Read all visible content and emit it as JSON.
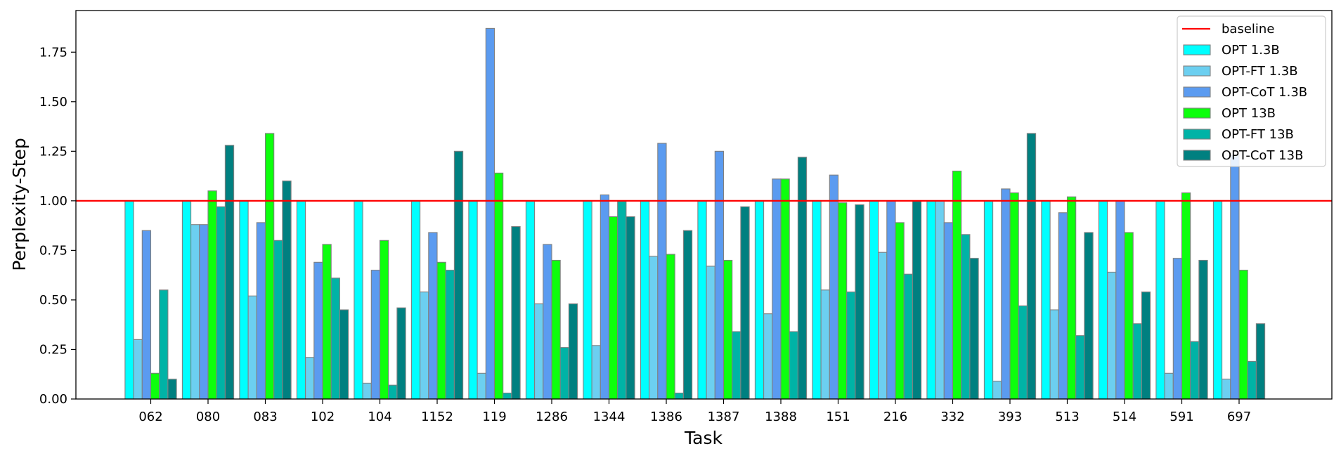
{
  "chart_data": {
    "type": "bar",
    "title": "",
    "xlabel": "Task",
    "ylabel": "Perplexity-Step",
    "ylim": [
      0,
      1.96
    ],
    "yticks": [
      "0.00",
      "0.25",
      "0.50",
      "0.75",
      "1.00",
      "1.25",
      "1.50",
      "1.75"
    ],
    "grid": false,
    "legend_position": "top-right",
    "categories": [
      "062",
      "080",
      "083",
      "102",
      "104",
      "1152",
      "119",
      "1286",
      "1344",
      "1386",
      "1387",
      "1388",
      "151",
      "216",
      "332",
      "393",
      "513",
      "514",
      "591",
      "697"
    ],
    "baseline": {
      "name": "baseline",
      "value": 1.0,
      "color": "#ff0000"
    },
    "series": [
      {
        "name": "OPT 1.3B",
        "color": "#00ffff",
        "values": [
          1.0,
          1.0,
          1.0,
          1.0,
          1.0,
          1.0,
          1.0,
          1.0,
          1.0,
          1.0,
          1.0,
          1.0,
          1.0,
          1.0,
          1.0,
          1.0,
          1.0,
          1.0,
          1.0,
          1.0
        ]
      },
      {
        "name": "OPT-FT 1.3B",
        "color": "#6ccff0",
        "values": [
          0.3,
          0.88,
          0.52,
          0.21,
          0.08,
          0.54,
          0.13,
          0.48,
          0.27,
          0.72,
          0.67,
          0.43,
          0.55,
          0.74,
          1.0,
          0.09,
          0.45,
          0.64,
          0.13,
          0.1
        ]
      },
      {
        "name": "OPT-CoT 1.3B",
        "color": "#5b9bf0",
        "values": [
          0.85,
          0.88,
          0.89,
          0.69,
          0.65,
          0.84,
          1.87,
          0.78,
          1.03,
          1.29,
          1.25,
          1.11,
          1.13,
          1.0,
          0.89,
          1.06,
          0.94,
          1.0,
          0.71,
          1.23
        ]
      },
      {
        "name": "OPT 13B",
        "color": "#0dff0d",
        "values": [
          0.13,
          1.05,
          1.34,
          0.78,
          0.8,
          0.69,
          1.14,
          0.7,
          0.92,
          0.73,
          0.7,
          1.11,
          0.99,
          0.89,
          1.15,
          1.04,
          1.02,
          0.84,
          1.04,
          0.65
        ]
      },
      {
        "name": "OPT-FT 13B",
        "color": "#00b3a6",
        "values": [
          0.55,
          0.97,
          0.8,
          0.61,
          0.07,
          0.65,
          0.03,
          0.26,
          1.0,
          0.03,
          0.34,
          0.34,
          0.54,
          0.63,
          0.83,
          0.47,
          0.32,
          0.38,
          0.29,
          0.19
        ]
      },
      {
        "name": "OPT-CoT 13B",
        "color": "#008080",
        "values": [
          0.1,
          1.28,
          1.1,
          0.45,
          0.46,
          1.25,
          0.87,
          0.48,
          0.92,
          0.85,
          0.97,
          1.22,
          0.98,
          1.0,
          0.71,
          1.34,
          0.84,
          0.54,
          0.7,
          0.38
        ]
      }
    ]
  }
}
